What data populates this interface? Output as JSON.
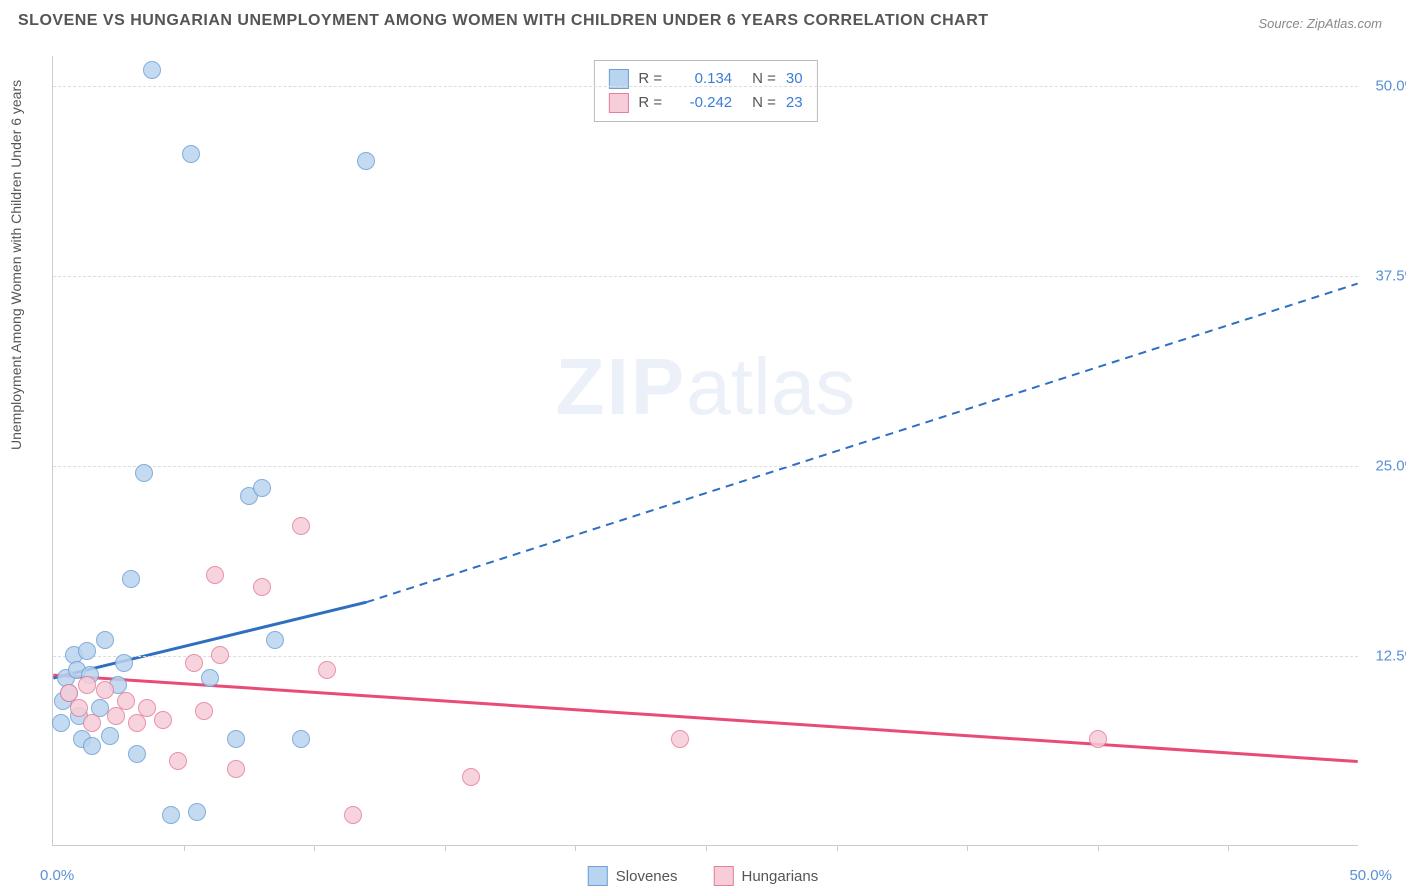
{
  "title": "SLOVENE VS HUNGARIAN UNEMPLOYMENT AMONG WOMEN WITH CHILDREN UNDER 6 YEARS CORRELATION CHART",
  "source": "Source: ZipAtlas.com",
  "watermark_zip": "ZIP",
  "watermark_atlas": "atlas",
  "y_axis_label": "Unemployment Among Women with Children Under 6 years",
  "chart": {
    "type": "scatter",
    "xlim": [
      0,
      50
    ],
    "ylim": [
      0,
      52
    ],
    "x_origin_label": "0.0%",
    "x_max_label": "50.0%",
    "y_ticks": [
      {
        "v": 12.5,
        "label": "12.5%"
      },
      {
        "v": 25.0,
        "label": "25.0%"
      },
      {
        "v": 37.5,
        "label": "37.5%"
      },
      {
        "v": 50.0,
        "label": "50.0%"
      }
    ],
    "x_minor_step": 5,
    "background_color": "#ffffff",
    "grid_color": "#dddddd",
    "series": [
      {
        "name": "Slovenes",
        "fill": "#b9d4ef",
        "stroke": "#6ea0d8",
        "line_color": "#2f6fc2",
        "r_label": "R =",
        "r_value": "0.134",
        "n_label": "N =",
        "n_value": "30",
        "trend": {
          "x1": 0,
          "y1": 11.0,
          "x2_solid": 12,
          "y2_solid": 16.0,
          "x2": 50,
          "y2": 37.0
        },
        "points": [
          {
            "x": 0.3,
            "y": 8.0
          },
          {
            "x": 0.4,
            "y": 9.5
          },
          {
            "x": 0.5,
            "y": 11.0
          },
          {
            "x": 0.6,
            "y": 10.0
          },
          {
            "x": 0.8,
            "y": 12.5
          },
          {
            "x": 0.9,
            "y": 11.5
          },
          {
            "x": 1.0,
            "y": 8.5
          },
          {
            "x": 1.1,
            "y": 7.0
          },
          {
            "x": 1.3,
            "y": 12.8
          },
          {
            "x": 1.4,
            "y": 11.2
          },
          {
            "x": 1.5,
            "y": 6.5
          },
          {
            "x": 1.8,
            "y": 9.0
          },
          {
            "x": 2.0,
            "y": 13.5
          },
          {
            "x": 2.2,
            "y": 7.2
          },
          {
            "x": 2.5,
            "y": 10.5
          },
          {
            "x": 2.7,
            "y": 12.0
          },
          {
            "x": 3.0,
            "y": 17.5
          },
          {
            "x": 3.2,
            "y": 6.0
          },
          {
            "x": 3.5,
            "y": 24.5
          },
          {
            "x": 3.8,
            "y": 51.0
          },
          {
            "x": 4.5,
            "y": 2.0
          },
          {
            "x": 5.3,
            "y": 45.5
          },
          {
            "x": 5.5,
            "y": 2.2
          },
          {
            "x": 6.0,
            "y": 11.0
          },
          {
            "x": 7.0,
            "y": 7.0
          },
          {
            "x": 7.5,
            "y": 23.0
          },
          {
            "x": 8.0,
            "y": 23.5
          },
          {
            "x": 8.5,
            "y": 13.5
          },
          {
            "x": 9.5,
            "y": 7.0
          },
          {
            "x": 12.0,
            "y": 45.0
          }
        ]
      },
      {
        "name": "Hungarians",
        "fill": "#f6cdd8",
        "stroke": "#e57f9a",
        "line_color": "#e94b77",
        "r_label": "R =",
        "r_value": "-0.242",
        "n_label": "N =",
        "n_value": "23",
        "trend": {
          "x1": 0,
          "y1": 11.2,
          "x2_solid": 50,
          "y2_solid": 5.5,
          "x2": 50,
          "y2": 5.5
        },
        "points": [
          {
            "x": 0.6,
            "y": 10.0
          },
          {
            "x": 1.0,
            "y": 9.0
          },
          {
            "x": 1.3,
            "y": 10.5
          },
          {
            "x": 1.5,
            "y": 8.0
          },
          {
            "x": 2.0,
            "y": 10.2
          },
          {
            "x": 2.4,
            "y": 8.5
          },
          {
            "x": 2.8,
            "y": 9.5
          },
          {
            "x": 3.2,
            "y": 8.0
          },
          {
            "x": 3.6,
            "y": 9.0
          },
          {
            "x": 4.2,
            "y": 8.2
          },
          {
            "x": 4.8,
            "y": 5.5
          },
          {
            "x": 5.4,
            "y": 12.0
          },
          {
            "x": 5.8,
            "y": 8.8
          },
          {
            "x": 6.2,
            "y": 17.8
          },
          {
            "x": 6.4,
            "y": 12.5
          },
          {
            "x": 7.0,
            "y": 5.0
          },
          {
            "x": 8.0,
            "y": 17.0
          },
          {
            "x": 9.5,
            "y": 21.0
          },
          {
            "x": 10.5,
            "y": 11.5
          },
          {
            "x": 11.5,
            "y": 2.0
          },
          {
            "x": 16.0,
            "y": 4.5
          },
          {
            "x": 24.0,
            "y": 7.0
          },
          {
            "x": 40.0,
            "y": 7.0
          }
        ]
      }
    ]
  }
}
